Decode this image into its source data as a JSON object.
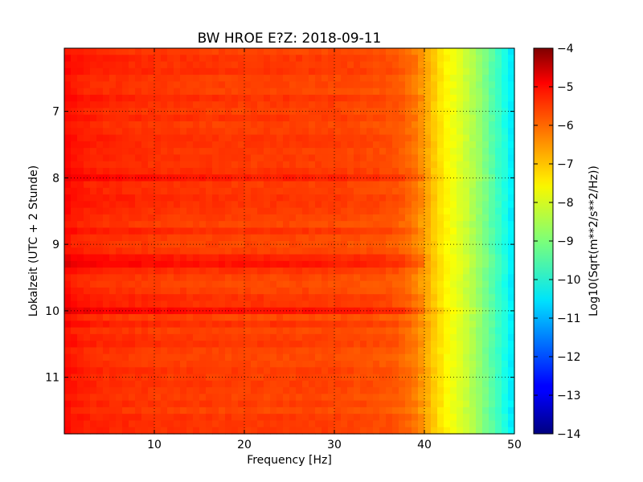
{
  "chart_data": {
    "type": "heatmap",
    "title": "BW HROE E?Z: 2018-09-11",
    "xlabel": "Frequency [Hz]",
    "ylabel": "Lokalzeit (UTC + 2 Stunde)",
    "colorbar_label": "Log10(Sqrt(m**2/s**2/Hz))",
    "colormap": "jet",
    "xlim": [
      0,
      50
    ],
    "ylim": [
      11.85,
      6.05
    ],
    "y_inverted": true,
    "grid": true,
    "x_ticks": [
      10,
      20,
      30,
      40,
      50
    ],
    "x_tick_labels": [
      "10",
      "20",
      "30",
      "40",
      "50"
    ],
    "y_ticks": [
      7,
      8,
      9,
      10,
      11
    ],
    "y_tick_labels": [
      "7",
      "8",
      "9",
      "10",
      "11"
    ],
    "color_range": [
      -14,
      -4
    ],
    "colorbar_ticks": [
      -4,
      -5,
      -6,
      -7,
      -8,
      -9,
      -10,
      -11,
      -12,
      -13,
      -14
    ],
    "colorbar_tick_labels": [
      "−4",
      "−5",
      "−6",
      "−7",
      "−8",
      "−9",
      "−10",
      "−11",
      "−12",
      "−13",
      "−14"
    ],
    "frequency_profile": {
      "frequency": [
        0,
        1,
        2,
        3,
        5,
        8,
        10,
        15,
        20,
        25,
        30,
        35,
        37,
        38,
        39,
        40,
        41,
        42,
        43,
        44,
        45,
        46,
        47,
        48,
        49,
        49.5,
        50
      ],
      "value": [
        -5.3,
        -5.45,
        -5.55,
        -5.6,
        -5.65,
        -5.7,
        -5.75,
        -5.8,
        -5.85,
        -5.85,
        -5.9,
        -6.0,
        -6.1,
        -6.25,
        -6.45,
        -6.8,
        -7.2,
        -7.55,
        -7.85,
        -8.1,
        -8.4,
        -8.75,
        -9.15,
        -9.6,
        -10.0,
        -10.3,
        -10.6
      ]
    },
    "notable_times": [
      8.0,
      9.25,
      10.0
    ]
  }
}
